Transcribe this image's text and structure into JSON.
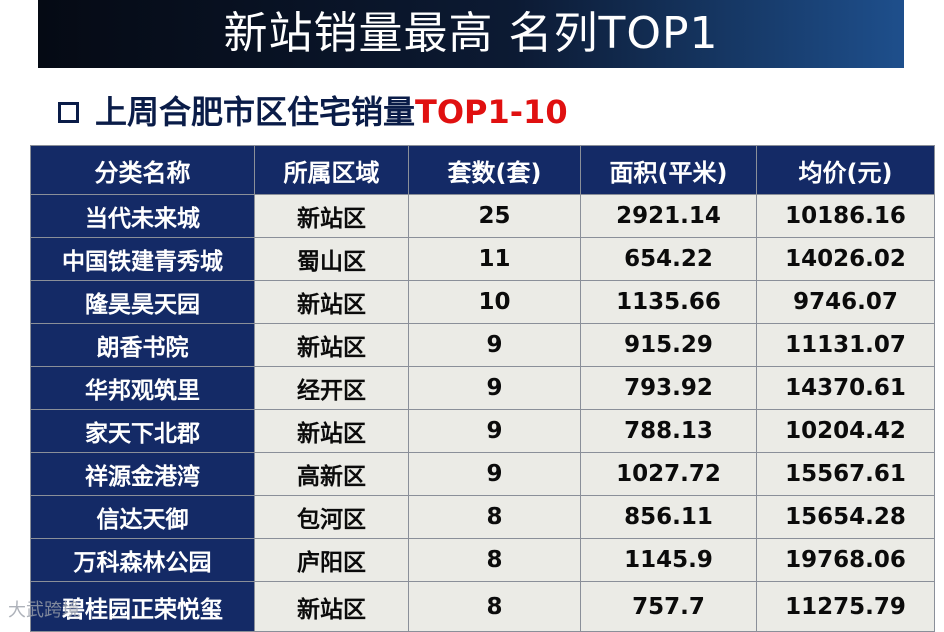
{
  "banner": {
    "title": "新站销量最高 名列TOP1"
  },
  "subtitle": {
    "prefix": "上周合肥市区住宅销量",
    "highlight": "TOP1-10"
  },
  "table": {
    "headers": [
      "分类名称",
      "所属区域",
      "套数(套)",
      "面积(平米)",
      "均价(元)"
    ],
    "rows": [
      [
        "当代未来城",
        "新站区",
        "25",
        "2921.14",
        "10186.16"
      ],
      [
        "中国铁建青秀城",
        "蜀山区",
        "11",
        "654.22",
        "14026.02"
      ],
      [
        "隆昊昊天园",
        "新站区",
        "10",
        "1135.66",
        "9746.07"
      ],
      [
        "朗香书院",
        "新站区",
        "9",
        "915.29",
        "11131.07"
      ],
      [
        "华邦观筑里",
        "经开区",
        "9",
        "793.92",
        "14370.61"
      ],
      [
        "家天下北郡",
        "新站区",
        "9",
        "788.13",
        "10204.42"
      ],
      [
        "祥源金港湾",
        "高新区",
        "9",
        "1027.72",
        "15567.61"
      ],
      [
        "信达天御",
        "包河区",
        "8",
        "856.11",
        "15654.28"
      ],
      [
        "万科森林公园",
        "庐阳区",
        "8",
        "1145.9",
        "19768.06"
      ],
      [
        "碧桂园正荣悦玺",
        "新站区",
        "8",
        "757.7",
        "11275.79"
      ]
    ]
  },
  "watermark": "大武跨境",
  "colors": {
    "header_bg": "#142a66",
    "cell_bg": "#ebebe6",
    "highlight": "#e01010",
    "title_text": "#0a1c48"
  }
}
